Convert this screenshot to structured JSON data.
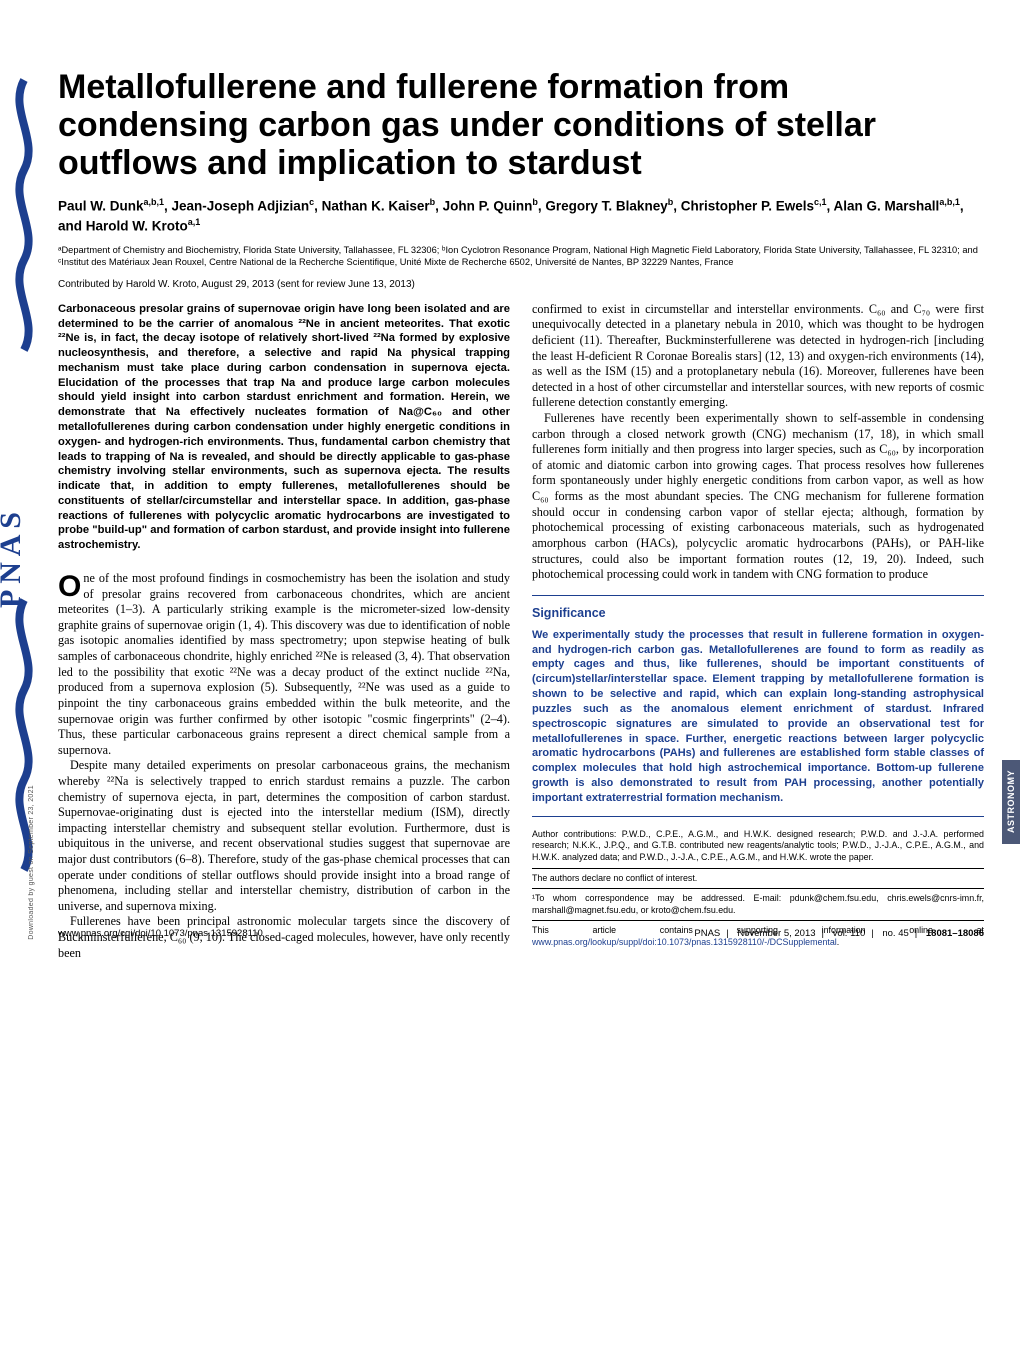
{
  "journal_tab": "ASTRONOMY",
  "download_note": "Downloaded by guest on September 23, 2021",
  "title": "Metallofullerene and fullerene formation from condensing carbon gas under conditions of stellar outflows and implication to stardust",
  "authors_html": "Paul W. Dunk<sup>a,b,1</sup>, Jean-Joseph Adjizian<sup>c</sup>, Nathan K. Kaiser<sup>b</sup>, John P. Quinn<sup>b</sup>, Gregory T. Blakney<sup>b</sup>, Christopher P. Ewels<sup>c,1</sup>, Alan G. Marshall<sup>a,b,1</sup>, and Harold W. Kroto<sup>a,1</sup>",
  "affiliations": "ᵃDepartment of Chemistry and Biochemistry, Florida State University, Tallahassee, FL 32306; ᵇIon Cyclotron Resonance Program, National High Magnetic Field Laboratory, Florida State University, Tallahassee, FL 32310; and ᶜInstitut des Matériaux Jean Rouxel, Centre National de la Recherche Scientifique, Unité Mixte de Recherche 6502, Université de Nantes, BP 32229 Nantes, France",
  "contributed": "Contributed by Harold W. Kroto, August 29, 2013 (sent for review June 13, 2013)",
  "abstract": "Carbonaceous presolar grains of supernovae origin have long been isolated and are determined to be the carrier of anomalous ²²Ne in ancient meteorites. That exotic ²²Ne is, in fact, the decay isotope of relatively short-lived ²²Na formed by explosive nucleosynthesis, and therefore, a selective and rapid Na physical trapping mechanism must take place during carbon condensation in supernova ejecta. Elucidation of the processes that trap Na and produce large carbon molecules should yield insight into carbon stardust enrichment and formation. Herein, we demonstrate that Na effectively nucleates formation of Na@C₆₀ and other metallofullerenes during carbon condensation under highly energetic conditions in oxygen- and hydrogen-rich environments. Thus, fundamental carbon chemistry that leads to trapping of Na is revealed, and should be directly applicable to gas-phase chemistry involving stellar environments, such as supernova ejecta. The results indicate that, in addition to empty fullerenes, metallofullerenes should be constituents of stellar/circumstellar and interstellar space. In addition, gas-phase reactions of fullerenes with polycyclic aromatic hydrocarbons are investigated to probe \"build-up\" and formation of carbon stardust, and provide insight into fullerene astrochemistry.",
  "col1": {
    "p1": "One of the most profound findings in cosmochemistry has been the isolation and study of presolar grains recovered from carbonaceous chondrites, which are ancient meteorites (1–3). A particularly striking example is the micrometer-sized low-density graphite grains of supernovae origin (1, 4). This discovery was due to identification of noble gas isotopic anomalies identified by mass spectrometry; upon stepwise heating of bulk samples of carbonaceous chondrite, highly enriched ²²Ne is released (3, 4). That observation led to the possibility that exotic ²²Ne was a decay product of the extinct nuclide ²²Na, produced from a supernova explosion (5). Subsequently, ²²Ne was used as a guide to pinpoint the tiny carbonaceous grains embedded within the bulk meteorite, and the supernovae origin was further confirmed by other isotopic \"cosmic fingerprints\" (2–4). Thus, these particular carbonaceous grains represent a direct chemical sample from a supernova.",
    "p2": "Despite many detailed experiments on presolar carbonaceous grains, the mechanism whereby ²²Na is selectively trapped to enrich stardust remains a puzzle. The carbon chemistry of supernova ejecta, in part, determines the composition of carbon stardust. Supernovae-originating dust is ejected into the interstellar medium (ISM), directly impacting interstellar chemistry and subsequent stellar evolution. Furthermore, dust is ubiquitous in the universe, and recent observational studies suggest that supernovae are major dust contributors (6–8). Therefore, study of the gas-phase chemical processes that can operate under conditions of stellar outflows should provide insight into a broad range of phenomena, including stellar and interstellar chemistry, distribution of carbon in the universe, and supernova mixing.",
    "p3": "Fullerenes have been principal astronomic molecular targets since the discovery of Buckminsterfullerene, C₆₀ (9, 10). The closed-caged molecules, however, have only recently been"
  },
  "col2": {
    "p1": "confirmed to exist in circumstellar and interstellar environments. C₆₀ and C₇₀ were first unequivocally detected in a planetary nebula in 2010, which was thought to be hydrogen deficient (11). Thereafter, Buckminsterfullerene was detected in hydrogen-rich [including the least H-deficient R Coronae Borealis stars] (12, 13) and oxygen-rich environments (14), as well as the ISM (15) and a protoplanetary nebula (16). Moreover, fullerenes have been detected in a host of other circumstellar and interstellar sources, with new reports of cosmic fullerene detection constantly emerging.",
    "p2": "Fullerenes have recently been experimentally shown to self-assemble in condensing carbon through a closed network growth (CNG) mechanism (17, 18), in which small fullerenes form initially and then progress into larger species, such as C₆₀, by incorporation of atomic and diatomic carbon into growing cages. That process resolves how fullerenes form spontaneously under highly energetic conditions from carbon vapor, as well as how C₆₀ forms as the most abundant species. The CNG mechanism for fullerene formation should occur in condensing carbon vapor of stellar ejecta; although, formation by photochemical processing of existing carbonaceous materials, such as hydrogenated amorphous carbon (HACs), polycyclic aromatic hydrocarbons (PAHs), or PAH-like structures, could also be important formation routes (12, 19, 20). Indeed, such photochemical processing could work in tandem with CNG formation to produce"
  },
  "significance": {
    "heading": "Significance",
    "body": "We experimentally study the processes that result in fullerene formation in oxygen- and hydrogen-rich carbon gas. Metallofullerenes are found to form as readily as empty cages and thus, like fullerenes, should be important constituents of (circum)stellar/interstellar space. Element trapping by metallofullerene formation is shown to be selective and rapid, which can explain long-standing astrophysical puzzles such as the anomalous element enrichment of stardust. Infrared spectroscopic signatures are simulated to provide an observational test for metallofullerenes in space. Further, energetic reactions between larger polycyclic aromatic hydrocarbons (PAHs) and fullerenes are established form stable classes of complex molecules that hold high astrochemical importance. Bottom-up fullerene growth is also demonstrated to result from PAH processing, another potentially important extraterrestrial formation mechanism."
  },
  "footnotes": {
    "contrib": "Author contributions: P.W.D., C.P.E., A.G.M., and H.W.K. designed research; P.W.D. and J.-J.A. performed research; N.K.K., J.P.Q., and G.T.B. contributed new reagents/analytic tools; P.W.D., J.-J.A., C.P.E., A.G.M., and H.W.K. analyzed data; and P.W.D., J.-J.A., C.P.E., A.G.M., and H.W.K. wrote the paper.",
    "conflict": "The authors declare no conflict of interest.",
    "corr": "¹To whom correspondence may be addressed. E-mail: pdunk@chem.fsu.edu, chris.ewels@cnrs-imn.fr, marshall@magnet.fsu.edu, or kroto@chem.fsu.edu.",
    "suppl_pre": "This article contains supporting information online at ",
    "suppl_link": "www.pnas.org/lookup/suppl/doi:10.1073/pnas.1315928110/-/DCSupplemental",
    "suppl_post": "."
  },
  "footer": {
    "doi": "www.pnas.org/cgi/doi/10.1073/pnas.1315928110",
    "journal": "PNAS",
    "date": "November 5, 2013",
    "vol": "vol. 110",
    "no": "no. 45",
    "pages": "18081–18086"
  },
  "colors": {
    "pnas_blue": "#1d3f8f",
    "tab_bg": "#4c5877"
  }
}
